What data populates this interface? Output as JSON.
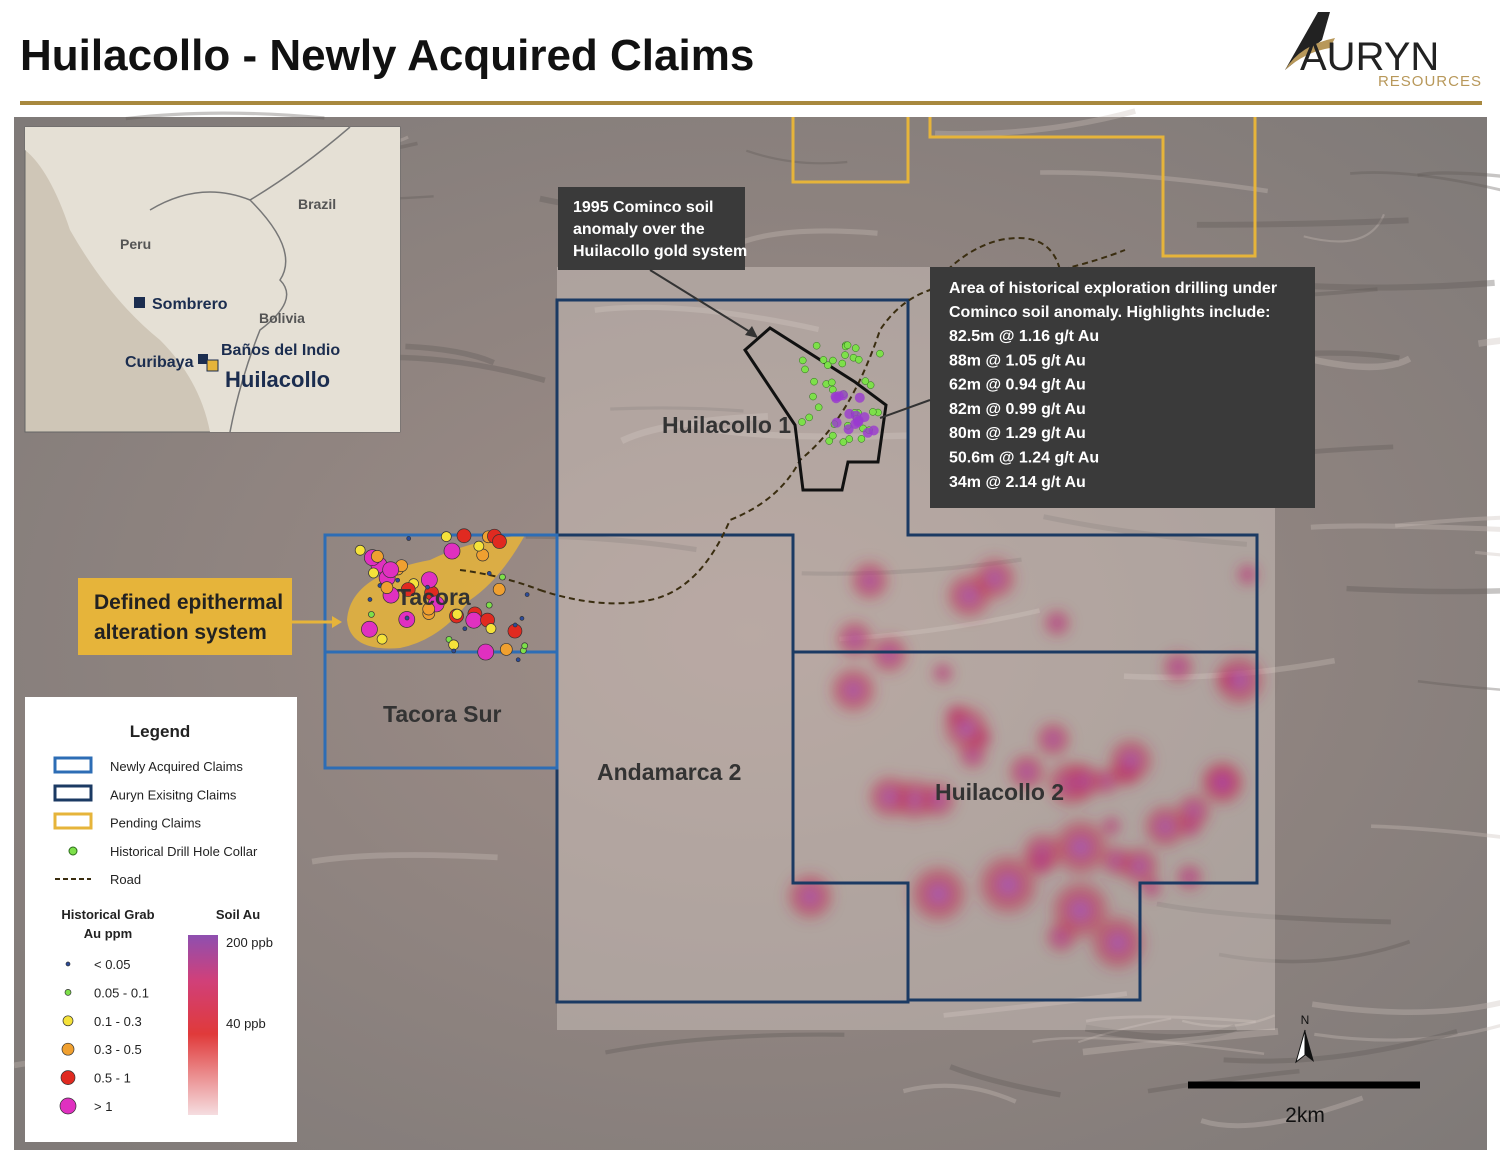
{
  "header": {
    "title": "Huilacollo - Newly Acquired Claims",
    "logo_name": "AURYN",
    "logo_subtitle": "RESOURCES"
  },
  "inset": {
    "labels": [
      "Brazil",
      "Peru",
      "Sombrero",
      "Bolivia",
      "Baños del Indio",
      "Curibaya",
      "Huilacollo"
    ]
  },
  "map_labels": [
    "Huilacollo 1",
    "Tacora",
    "Tacora Sur",
    "Andamarca 2",
    "Huilacollo 2"
  ],
  "callouts": {
    "cominco": [
      "1995 Cominco soil",
      "anomaly over the",
      "Huilacollo gold system"
    ],
    "drilling": {
      "intro": [
        "Area of historical exploration drilling under",
        "Cominco soil anomaly. Highlights include:"
      ],
      "highlights": [
        "82.5m @ 1.16 g/t Au",
        "88m @ 1.05 g/t Au",
        "62m @ 0.94 g/t Au",
        "82m @ 0.99 g/t Au",
        "80m @ 1.29 g/t Au",
        "50.6m @ 1.24 g/t Au",
        "34m @ 2.14 g/t Au"
      ]
    },
    "epithermal": [
      "Defined epithermal",
      "alteration system"
    ]
  },
  "legend": {
    "title": "Legend",
    "items": [
      "Newly Acquired Claims",
      "Auryn Exisitng Claims",
      "Pending Claims",
      "Historical Drill Hole Collar",
      "Road"
    ],
    "grab_title": [
      "Historical Grab",
      "Au ppm"
    ],
    "grab_classes": [
      "< 0.05",
      "0.05 - 0.1",
      "0.1 - 0.3",
      "0.3 - 0.5",
      "0.5 - 1",
      "> 1"
    ],
    "soil_title": "Soil Au",
    "soil_labels": [
      "200 ppb",
      "40 ppb"
    ]
  },
  "scale": {
    "label": "2km",
    "north": "N"
  }
}
